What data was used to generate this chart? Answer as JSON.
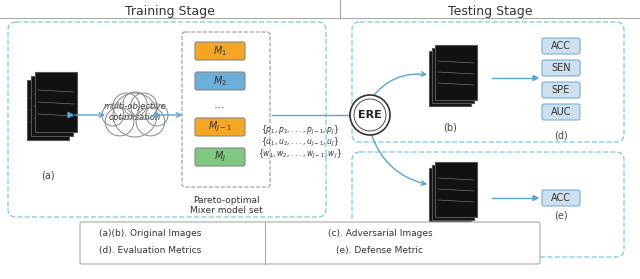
{
  "title_training": "Training Stage",
  "title_testing": "Testing Stage",
  "bg_color": "#ffffff",
  "dashed_blue": "#87CEEB",
  "box_orange": "#f5a623",
  "box_green": "#7fc97f",
  "box_blue2": "#6baed6",
  "arrow_color": "#5ba3d9",
  "legend_items": [
    "(a)(b). Original Images",
    "(d). Evaluation Metrics",
    "(c). Adversarial Images",
    "(e). Defense Metric"
  ],
  "metric_labels_d": [
    "ACC",
    "SEN",
    "SPE",
    "AUC"
  ],
  "ere_label": "ERE",
  "pareto_label": "Pareto-optimal\nMixer model set",
  "cloud_label": "multi-objective\noptimization"
}
